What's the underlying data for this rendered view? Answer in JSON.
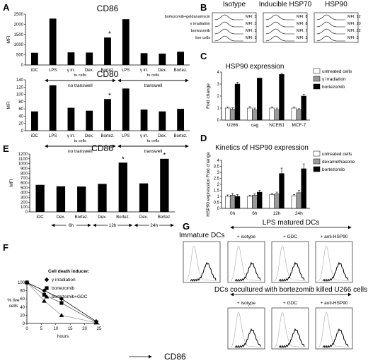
{
  "panels": {
    "A": {
      "label": "A"
    },
    "B": {
      "label": "B"
    },
    "C": {
      "label": "C"
    },
    "D": {
      "label": "D"
    },
    "E": {
      "label": "E"
    },
    "F": {
      "label": "F"
    },
    "G": {
      "label": "G"
    }
  },
  "chart_data": [
    {
      "id": "A1",
      "type": "bar",
      "title": "CD86",
      "ylabel": "MFI",
      "ylim": [
        0,
        2500
      ],
      "yticks": [
        0,
        500,
        1000,
        1500,
        2000,
        2500
      ],
      "categories": [
        "iDC",
        "LPS",
        "γ irr.",
        "Dex.",
        "Bortez.",
        "LPS",
        "γ irr.",
        "Dex.",
        "Bortez."
      ],
      "values": [
        600,
        2280,
        620,
        610,
        1350,
        2250,
        580,
        560,
        650
      ],
      "star_index": 4,
      "groups": [
        {
          "label": "no transwell",
          "from": 1,
          "to": 4
        },
        {
          "label": "transwell",
          "from": 5,
          "to": 8
        }
      ],
      "sub_labels": [
        {
          "label": "tu cells",
          "at": 2.5
        },
        {
          "label": "tu cells",
          "at": 6.5
        }
      ]
    },
    {
      "id": "A2",
      "type": "bar",
      "title": "CD80",
      "ylabel": "MFI",
      "ylim": [
        0,
        140
      ],
      "yticks": [
        0,
        20,
        40,
        60,
        80,
        100,
        120,
        140
      ],
      "categories": [
        "iDC",
        "LPS",
        "γ irr.",
        "Dex.",
        "Bortez.",
        "LPS",
        "γ irr.",
        "Dex.",
        "Bortez."
      ],
      "values": [
        53,
        125,
        63,
        55,
        87,
        116,
        58,
        53,
        60
      ],
      "star_index": 4,
      "groups": [
        {
          "label": "no transwell",
          "from": 1,
          "to": 4
        },
        {
          "label": "transwell",
          "from": 5,
          "to": 8
        }
      ],
      "sub_labels": [
        {
          "label": "tu cells",
          "at": 2.5
        },
        {
          "label": "tu cells",
          "at": 6.5
        }
      ]
    },
    {
      "id": "B",
      "type": "histogram-grid",
      "column_headers": [
        "Isotype",
        "Inducible HSP70",
        "HSP90"
      ],
      "row_labels": [
        "bortezomib+geldanamycin",
        "γ irradiation",
        "bortezomib",
        "live cells"
      ],
      "mfi_prefix": "MFI:",
      "mfi": [
        [
          3,
          8,
          12
        ],
        [
          3,
          8,
          10
        ],
        [
          3,
          7,
          22
        ],
        [
          3,
          3,
          3
        ]
      ]
    },
    {
      "id": "C",
      "type": "bar",
      "title": "HSP90 expression",
      "ylabel": "Fold change",
      "ylim": [
        0,
        4
      ],
      "yticks": [
        0,
        1,
        2,
        3,
        4
      ],
      "categories": [
        "U266",
        "cag",
        "NCEB1",
        "MCF-7"
      ],
      "series": [
        {
          "name": "untreated cells",
          "color": "#ffffff",
          "values": [
            1.0,
            1.0,
            1.0,
            1.0
          ],
          "err": [
            0.1,
            0.12,
            0.1,
            0.1
          ]
        },
        {
          "name": "γ irradiation",
          "color": "#9a9a9a",
          "values": [
            0.9,
            0.85,
            0.85,
            0.85
          ],
          "err": [
            0.12,
            0.15,
            0.15,
            0.1
          ]
        },
        {
          "name": "bortezomib",
          "color": "#000000",
          "values": [
            3.0,
            3.5,
            3.8,
            2.0
          ],
          "err": [
            0.15,
            0.0,
            0.1,
            0.15
          ]
        }
      ]
    },
    {
      "id": "D",
      "type": "bar",
      "title": "Kinetics of HSP90 expression",
      "ylabel": "HSP90 expression Fold change",
      "ylim": [
        0,
        4
      ],
      "yticks": [
        0,
        0.5,
        1,
        1.5,
        2,
        2.5,
        3,
        3.5,
        4
      ],
      "categories": [
        "0h",
        "6h",
        "12h",
        "24h"
      ],
      "series": [
        {
          "name": "untreated cells",
          "color": "#ffffff",
          "values": [
            1.0,
            1.0,
            1.15,
            1.05
          ],
          "err": [
            0.12,
            0.1,
            0.1,
            0.1
          ]
        },
        {
          "name": "dexamethasone",
          "color": "#9a9a9a",
          "values": [
            1.1,
            1.1,
            1.2,
            1.3
          ],
          "err": [
            0.15,
            0.12,
            0.15,
            0.2
          ]
        },
        {
          "name": "bortezomib",
          "color": "#000000",
          "values": [
            1.0,
            1.35,
            2.9,
            3.3
          ],
          "err": [
            0.15,
            0.15,
            0.45,
            0.4
          ]
        }
      ]
    },
    {
      "id": "E",
      "type": "bar",
      "title": "CD86",
      "ylabel": "MFI",
      "ylim": [
        0,
        1200
      ],
      "yticks": [
        0,
        100,
        200,
        300,
        400,
        500,
        600,
        700,
        800,
        900,
        1000,
        1100,
        1200
      ],
      "categories": [
        "iDC",
        "Dex.",
        "Bortez.",
        "Dex.",
        "Bortez.",
        "Dex.",
        "Bortez."
      ],
      "values": [
        560,
        530,
        525,
        580,
        1020,
        590,
        1100
      ],
      "star_indices": [
        4,
        6
      ],
      "time_groups": [
        {
          "label": "6h",
          "from": 1,
          "to": 2
        },
        {
          "label": "12h",
          "from": 3,
          "to": 4
        },
        {
          "label": "24h",
          "from": 5,
          "to": 6
        }
      ]
    },
    {
      "id": "F",
      "type": "line",
      "legend_title": "Cell death inducer:",
      "ylabel": "% live cells",
      "xlabel": "hours",
      "xlim": [
        0,
        25
      ],
      "ylim": [
        0,
        100
      ],
      "xticks": [
        0,
        5,
        10,
        15,
        20,
        25
      ],
      "yticks": [
        0,
        20,
        40,
        60,
        80,
        100
      ],
      "series": [
        {
          "name": "γ irradiation",
          "marker": "diamond",
          "x": [
            0,
            6,
            12,
            24
          ],
          "y": [
            100,
            80,
            60,
            5
          ]
        },
        {
          "name": "bortezomib",
          "marker": "square",
          "x": [
            0,
            6,
            12,
            24
          ],
          "y": [
            100,
            70,
            50,
            3
          ]
        },
        {
          "name": "bortezomib+GDC",
          "marker": "triangle",
          "x": [
            0,
            6,
            12,
            24
          ],
          "y": [
            100,
            55,
            20,
            2
          ]
        }
      ]
    },
    {
      "id": "G",
      "type": "histogram-grid",
      "top_group_title": "LPS matured DCs",
      "bottom_group_title": "DCs cocultured with bortezomib killed U266 cells",
      "first_column_title": "Immature DCs",
      "column_headers": [
        "+ isotype",
        "+ GDC",
        "+ anti-HSP90"
      ],
      "xlabel": "CD86"
    }
  ]
}
